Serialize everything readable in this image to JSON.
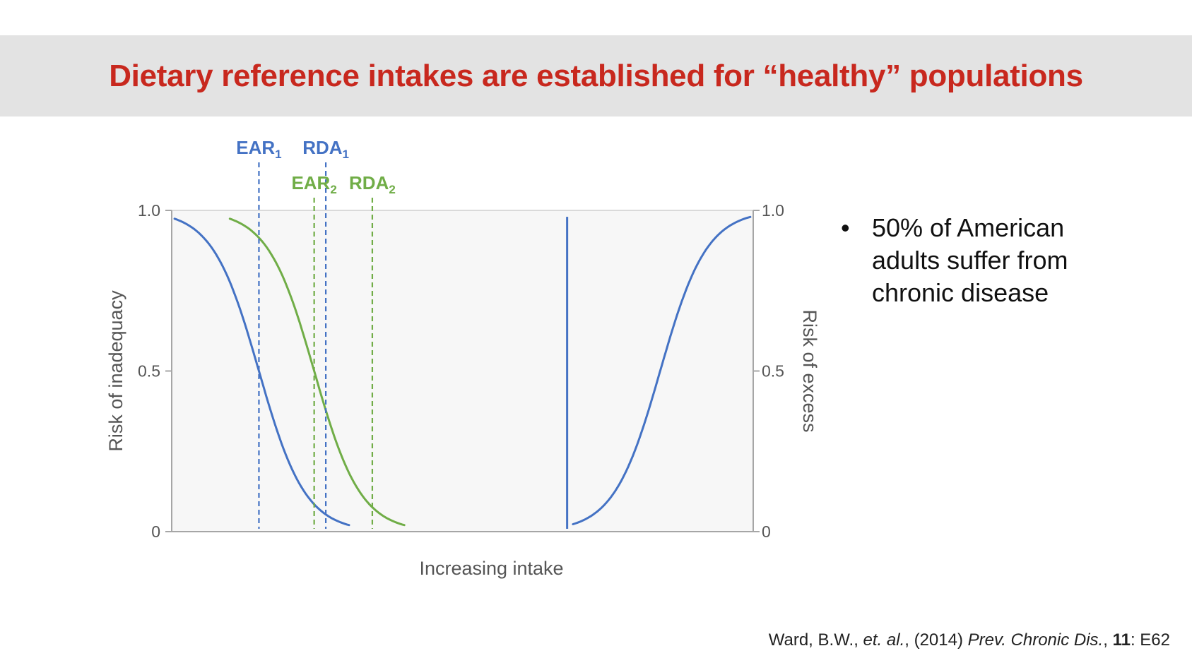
{
  "slide": {
    "title": "Dietary reference intakes are established for “healthy” populations",
    "bullets": [
      "50% of American adults suffer from chronic disease"
    ],
    "citation": {
      "authors": "Ward, B.W., ",
      "etal": "et. al.",
      "comma1": ", (2014) ",
      "journal": "Prev. Chronic Dis.",
      "comma2": ", ",
      "volume": "11",
      "page": ": E62"
    }
  },
  "colors": {
    "title": "#c8281e",
    "blue": "#4472c4",
    "green": "#70ad47",
    "axis": "#a6a6a6",
    "plot_bg": "#f7f7f7",
    "band": "#e3e3e3"
  },
  "chart_data": {
    "type": "line",
    "xlabel": "Increasing intake",
    "ylabel_left": "Risk of inadequacy",
    "ylabel_right": "Risk of excess",
    "xlim": [
      0,
      100
    ],
    "ylim": [
      0,
      1
    ],
    "yticks": [
      "0",
      "0.5",
      "1.0"
    ],
    "grid": false,
    "series": [
      {
        "name": "",
        "color": "blue",
        "kind": "inadequacy",
        "x": [
          0.5,
          15,
          30.5
        ],
        "center": 15,
        "steepness": 0.25
      },
      {
        "name": "",
        "color": "green",
        "kind": "inadequacy",
        "x": [
          10,
          24.5,
          40
        ],
        "center": 24.5,
        "steepness": 0.25
      },
      {
        "name": "",
        "color": "blue",
        "kind": "excess",
        "x": [
          69,
          83,
          99.5
        ],
        "center": 84,
        "steepness": 0.25
      }
    ],
    "vlines": [
      {
        "label": "EAR",
        "sub": "1",
        "x": 15,
        "color": "blue",
        "style": "dashed",
        "label_row": 1
      },
      {
        "label": "RDA",
        "sub": "1",
        "x": 26.5,
        "color": "blue",
        "style": "dashed",
        "label_row": 1
      },
      {
        "label": "EAR",
        "sub": "2",
        "x": 24.5,
        "color": "green",
        "style": "dashed",
        "label_row": 2
      },
      {
        "label": "RDA",
        "sub": "2",
        "x": 34.5,
        "color": "green",
        "style": "dashed",
        "label_row": 2
      },
      {
        "label": "",
        "sub": "",
        "x": 68,
        "color": "blue",
        "style": "solid",
        "label_row": 0
      }
    ]
  }
}
